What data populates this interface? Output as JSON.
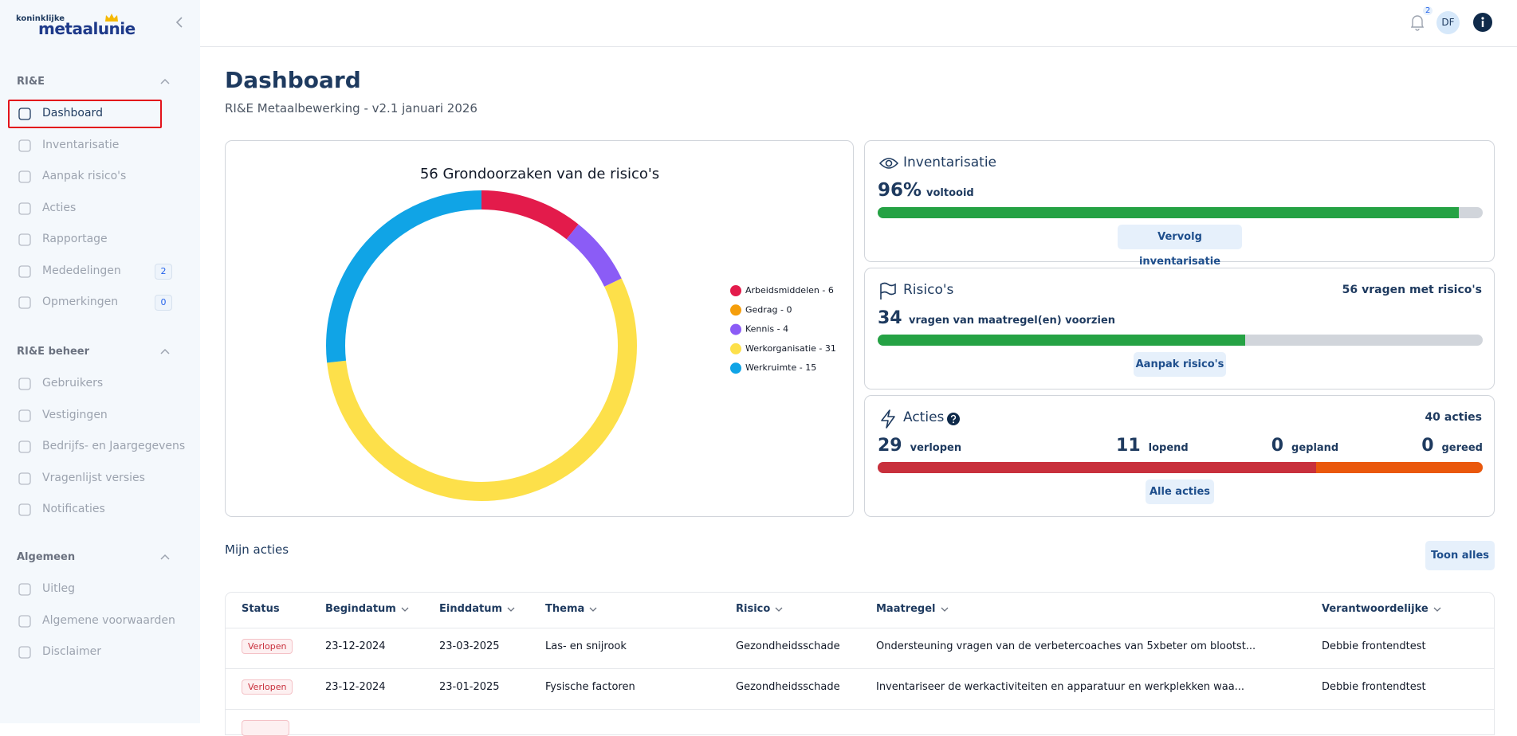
{
  "header": {
    "notification_count": 2,
    "avatar": "DF"
  },
  "sidebar": {
    "logo_top": "koninklijke",
    "logo_bottom": "metaalunie",
    "sections": [
      {
        "title": "RI&E",
        "items": [
          {
            "label": "Dashboard"
          },
          {
            "label": "Inventarisatie"
          },
          {
            "label": "Aanpak risico's"
          },
          {
            "label": "Acties"
          },
          {
            "label": "Rapportage"
          },
          {
            "label": "Mededelingen",
            "badge": 2
          },
          {
            "label": "Opmerkingen",
            "badge": 0
          }
        ]
      },
      {
        "title": "RI&E beheer",
        "items": [
          {
            "label": "Gebruikers"
          },
          {
            "label": "Vestigingen"
          },
          {
            "label": "Bedrijfs- en Jaargegevens"
          },
          {
            "label": "Vragenlijst versies"
          },
          {
            "label": "Notificaties"
          }
        ]
      },
      {
        "title": "Algemeen",
        "items": [
          {
            "label": "Uitleg"
          },
          {
            "label": "Algemene voorwaarden"
          },
          {
            "label": "Disclaimer"
          }
        ]
      }
    ]
  },
  "page": {
    "title": "Dashboard",
    "subtitle": "RI&E Metaalbewerking - v2.1 januari 2026"
  },
  "chart_data": {
    "type": "donut",
    "title": "56 Grondoorzaken van de risico's",
    "categories": [
      "Arbeidsmiddelen",
      "Gedrag",
      "Kennis",
      "Werkorganisatie",
      "Werkruimte"
    ],
    "values": [
      6,
      0,
      4,
      31,
      15
    ],
    "legend_labels": [
      "Arbeidsmiddelen - 6",
      "Gedrag - 0",
      "Kennis - 4",
      "Werkorganisatie - 31",
      "Werkruimte - 15"
    ],
    "colors": [
      "#e31b4b",
      "#f59e0b",
      "#8b5cf6",
      "#fde04a",
      "#10a4e6"
    ]
  },
  "inventarisatie": {
    "title": "Inventarisatie",
    "value": 96,
    "value_label": "96%",
    "text": "voltooid",
    "button": "Vervolg inventarisatie"
  },
  "risicos": {
    "title": "Risico's",
    "total": 56,
    "total_text": "vragen met risico's",
    "count": 34,
    "count_text": "vragen van maatregel(en) voorzien",
    "button": "Aanpak risico's"
  },
  "acties": {
    "title": "Acties",
    "total": 40,
    "total_text": "acties",
    "stats": [
      {
        "value": 29,
        "label": "verlopen",
        "color": "#c8303c"
      },
      {
        "value": 11,
        "label": "lopend",
        "color": "#ea580c"
      },
      {
        "value": 0,
        "label": "gepland",
        "color": "#2563eb"
      },
      {
        "value": 0,
        "label": "gereed",
        "color": "#16a34a"
      }
    ],
    "button": "Alle acties"
  },
  "mijn_acties": {
    "title": "Mijn acties",
    "button": "Toon alles",
    "columns": [
      "Status",
      "Begindatum",
      "Einddatum",
      "Thema",
      "Risico",
      "Maatregel",
      "Verantwoordelijke"
    ],
    "rows": [
      [
        "Verlopen",
        "23-12-2024",
        "23-03-2025",
        "Las- en snijrook",
        "Gezondheidsschade",
        "Ondersteuning vragen van de verbetercoaches van 5xbeter om blootst...",
        "Debbie frontendtest"
      ],
      [
        "Verlopen",
        "23-12-2024",
        "23-01-2025",
        "Fysische factoren",
        "Gezondheidsschade",
        "Inventariseer de werkactiviteiten en apparatuur en werkplekken waa...",
        "Debbie frontendtest"
      ]
    ]
  }
}
